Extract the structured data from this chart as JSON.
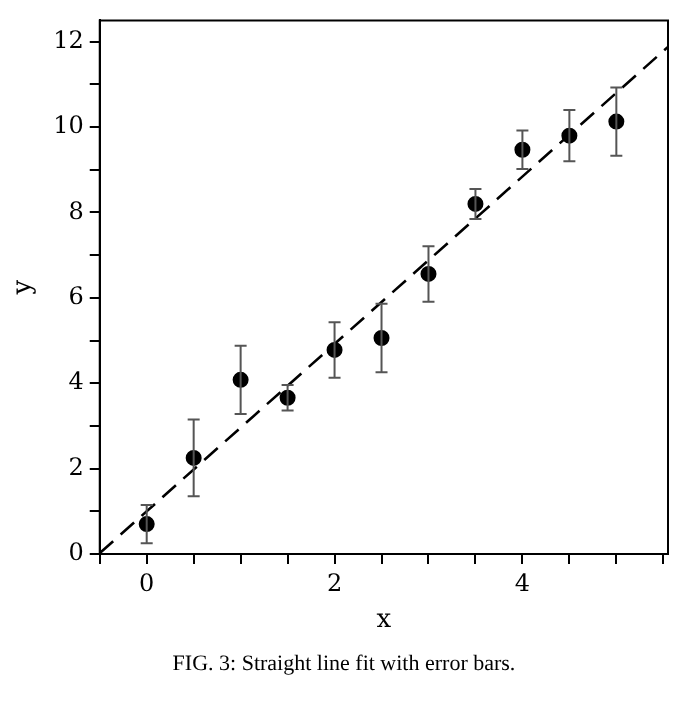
{
  "chart_data": {
    "type": "scatter",
    "xlabel": "x",
    "ylabel": "y",
    "annotations": [
      "FIG. 3: Straight line fit with error bars."
    ],
    "xlim": [
      -0.5,
      5.55
    ],
    "ylim": [
      0,
      12.5
    ],
    "xticks": [
      {
        "value": -0.5,
        "label": null
      },
      0,
      {
        "value": 0.5,
        "label": null
      },
      {
        "value": 1,
        "label": null
      },
      {
        "value": 1.5,
        "label": null
      },
      2,
      {
        "value": 2.5,
        "label": null
      },
      {
        "value": 3,
        "label": null
      },
      {
        "value": 3.5,
        "label": null
      },
      4,
      {
        "value": 4.5,
        "label": null
      },
      {
        "value": 5,
        "label": null
      },
      {
        "value": 5.5,
        "label": null
      }
    ],
    "yticks": [
      0,
      {
        "value": 1,
        "label": null
      },
      2,
      {
        "value": 3,
        "label": null
      },
      4,
      {
        "value": 5,
        "label": null
      },
      6,
      {
        "value": 7,
        "label": null
      },
      8,
      {
        "value": 9,
        "label": null
      },
      10,
      {
        "value": 11,
        "label": null
      },
      12
    ],
    "grid": false,
    "legend": false,
    "marker": "circle",
    "series": [
      {
        "type": "scatter",
        "color": "#000000",
        "x": [
          0,
          0.5,
          1,
          1.5,
          2,
          2.5,
          3,
          3.5,
          4,
          4.5,
          5
        ],
        "values": [
          0.7,
          2.25,
          4.08,
          3.66,
          4.78,
          5.06,
          6.56,
          8.2,
          9.47,
          9.8,
          10.13
        ],
        "errors": [
          0.45,
          0.9,
          0.8,
          0.3,
          0.65,
          0.8,
          0.65,
          0.35,
          0.45,
          0.6,
          0.8
        ]
      },
      {
        "type": "line",
        "color": "#000000",
        "line_style": "dashed",
        "marker": "none",
        "x": [
          -0.5,
          5.55
        ],
        "values": [
          0.02,
          11.88
        ]
      }
    ]
  }
}
